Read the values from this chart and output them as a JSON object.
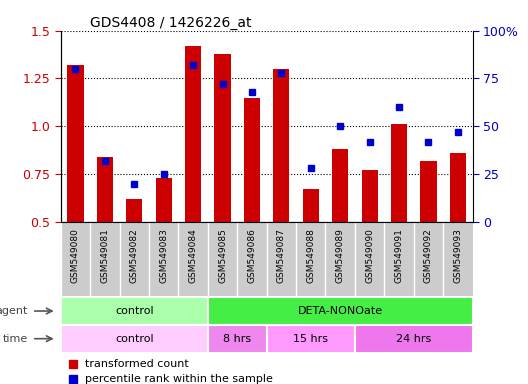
{
  "title": "GDS4408 / 1426226_at",
  "samples": [
    "GSM549080",
    "GSM549081",
    "GSM549082",
    "GSM549083",
    "GSM549084",
    "GSM549085",
    "GSM549086",
    "GSM549087",
    "GSM549088",
    "GSM549089",
    "GSM549090",
    "GSM549091",
    "GSM549092",
    "GSM549093"
  ],
  "transformed_count": [
    1.32,
    0.84,
    0.62,
    0.73,
    1.42,
    1.38,
    1.15,
    1.3,
    0.67,
    0.88,
    0.77,
    1.01,
    0.82,
    0.86
  ],
  "percentile_rank": [
    80,
    32,
    20,
    25,
    82,
    72,
    68,
    78,
    28,
    50,
    42,
    60,
    42,
    47
  ],
  "ylim_left": [
    0.5,
    1.5
  ],
  "ylim_right": [
    0,
    100
  ],
  "yticks_left": [
    0.5,
    0.75,
    1.0,
    1.25,
    1.5
  ],
  "yticks_right": [
    0,
    25,
    50,
    75,
    100
  ],
  "ytick_labels_right": [
    "0",
    "25",
    "50",
    "75",
    "100%"
  ],
  "bar_color": "#cc0000",
  "dot_color": "#0000cc",
  "bar_bottom": 0.5,
  "agent_groups": [
    {
      "label": "control",
      "start": 0,
      "end": 5,
      "color": "#aaffaa"
    },
    {
      "label": "DETA-NONOate",
      "start": 5,
      "end": 14,
      "color": "#44ee44"
    }
  ],
  "time_groups": [
    {
      "label": "control",
      "start": 0,
      "end": 5,
      "color": "#ffccff"
    },
    {
      "label": "8 hrs",
      "start": 5,
      "end": 7,
      "color": "#ee88ee"
    },
    {
      "label": "15 hrs",
      "start": 7,
      "end": 10,
      "color": "#ff99ff"
    },
    {
      "label": "24 hrs",
      "start": 10,
      "end": 14,
      "color": "#ee77ee"
    }
  ],
  "legend_items": [
    {
      "label": "transformed count",
      "color": "#cc0000",
      "marker": "s"
    },
    {
      "label": "percentile rank within the sample",
      "color": "#0000cc",
      "marker": "s"
    }
  ],
  "tick_label_color_left": "#cc0000",
  "tick_label_color_right": "#0000bb",
  "grid_color": "black",
  "background_color": "#ffffff",
  "label_bg_color": "#cccccc",
  "n_samples": 14
}
